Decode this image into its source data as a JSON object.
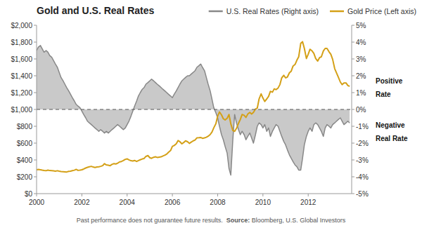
{
  "chart_data": {
    "type": "line",
    "title": "Gold and U.S. Real Rates",
    "footnote": "Past performance does not guarantee future results.  ",
    "source_label": "Source:",
    "source": " Bloomberg, U.S. Global Investors",
    "annotations": [
      "Positive",
      "Rate",
      "Negative",
      "Real Rate"
    ],
    "reference_line": 1000,
    "legend": "top",
    "grid": false,
    "xlim": [
      2000,
      2013.92
    ],
    "xticks": [
      2000,
      2002,
      2004,
      2006,
      2008,
      2010,
      2012
    ],
    "ylim": [
      0,
      2000
    ],
    "yticks": [
      {
        "value": 0,
        "label": "$0"
      },
      {
        "value": 200,
        "label": "$200"
      },
      {
        "value": 400,
        "label": "$400"
      },
      {
        "value": 600,
        "label": "$600"
      },
      {
        "value": 800,
        "label": "$800"
      },
      {
        "value": 1000,
        "label": "$1,000"
      },
      {
        "value": 1200,
        "label": "$1,200"
      },
      {
        "value": 1400,
        "label": "$1,400"
      },
      {
        "value": 1600,
        "label": "$1,600"
      },
      {
        "value": 1800,
        "label": "$1,800"
      },
      {
        "value": 2000,
        "label": "$2,000"
      }
    ],
    "y2lim": [
      -5,
      5
    ],
    "y2ticks": [
      {
        "value": -5,
        "label": "-5%"
      },
      {
        "value": -4,
        "label": "-4%"
      },
      {
        "value": -3,
        "label": "-3%"
      },
      {
        "value": -2,
        "label": "-2%"
      },
      {
        "value": -1,
        "label": "-1%"
      },
      {
        "value": 0,
        "label": "0%"
      },
      {
        "value": 1,
        "label": "1%"
      },
      {
        "value": 2,
        "label": "2%"
      },
      {
        "value": 3,
        "label": "3%"
      },
      {
        "value": 4,
        "label": "4%"
      },
      {
        "value": 5,
        "label": "5%"
      }
    ],
    "x": [
      2000.0,
      2000.08,
      2000.17,
      2000.25,
      2000.33,
      2000.42,
      2000.5,
      2000.58,
      2000.67,
      2000.75,
      2000.83,
      2000.92,
      2001.0,
      2001.08,
      2001.17,
      2001.25,
      2001.33,
      2001.42,
      2001.5,
      2001.58,
      2001.67,
      2001.75,
      2001.83,
      2001.92,
      2002.0,
      2002.08,
      2002.17,
      2002.25,
      2002.33,
      2002.42,
      2002.5,
      2002.58,
      2002.67,
      2002.75,
      2002.83,
      2002.92,
      2003.0,
      2003.08,
      2003.17,
      2003.25,
      2003.33,
      2003.42,
      2003.5,
      2003.58,
      2003.67,
      2003.75,
      2003.83,
      2003.92,
      2004.0,
      2004.08,
      2004.17,
      2004.25,
      2004.33,
      2004.42,
      2004.5,
      2004.58,
      2004.67,
      2004.75,
      2004.83,
      2004.92,
      2005.0,
      2005.08,
      2005.17,
      2005.25,
      2005.33,
      2005.42,
      2005.5,
      2005.58,
      2005.67,
      2005.75,
      2005.83,
      2005.92,
      2006.0,
      2006.08,
      2006.17,
      2006.25,
      2006.33,
      2006.42,
      2006.5,
      2006.58,
      2006.67,
      2006.75,
      2006.83,
      2006.92,
      2007.0,
      2007.08,
      2007.17,
      2007.25,
      2007.33,
      2007.42,
      2007.5,
      2007.58,
      2007.67,
      2007.75,
      2007.83,
      2007.92,
      2008.0,
      2008.08,
      2008.17,
      2008.25,
      2008.33,
      2008.42,
      2008.5,
      2008.58,
      2008.67,
      2008.75,
      2008.83,
      2008.92,
      2009.0,
      2009.08,
      2009.17,
      2009.25,
      2009.33,
      2009.42,
      2009.5,
      2009.58,
      2009.67,
      2009.75,
      2009.83,
      2009.92,
      2010.0,
      2010.08,
      2010.17,
      2010.25,
      2010.33,
      2010.42,
      2010.5,
      2010.58,
      2010.67,
      2010.75,
      2010.83,
      2010.92,
      2011.0,
      2011.08,
      2011.17,
      2011.25,
      2011.33,
      2011.42,
      2011.5,
      2011.58,
      2011.67,
      2011.75,
      2011.83,
      2011.92,
      2012.0,
      2012.08,
      2012.17,
      2012.25,
      2012.33,
      2012.42,
      2012.5,
      2012.58,
      2012.67,
      2012.75,
      2012.83,
      2012.92,
      2013.0,
      2013.08,
      2013.17,
      2013.25,
      2013.33,
      2013.42,
      2013.5,
      2013.58,
      2013.67,
      2013.75,
      2013.83
    ],
    "series": [
      {
        "name": "U.S. Real Rates (Right axis)",
        "color": "#888888",
        "axis": "y2",
        "type": "area",
        "values": [
          3.5,
          3.7,
          3.8,
          3.6,
          3.4,
          3.5,
          3.4,
          3.2,
          3.1,
          2.9,
          2.7,
          2.5,
          2.2,
          1.9,
          1.7,
          1.5,
          1.3,
          1.1,
          0.9,
          0.7,
          0.5,
          0.3,
          0.2,
          0.1,
          -0.1,
          -0.3,
          -0.5,
          -0.7,
          -0.8,
          -0.9,
          -1.0,
          -1.1,
          -1.2,
          -1.3,
          -1.2,
          -1.3,
          -1.4,
          -1.3,
          -1.4,
          -1.3,
          -1.2,
          -1.1,
          -1.0,
          -0.9,
          -1.0,
          -1.1,
          -1.2,
          -1.1,
          -0.9,
          -0.7,
          -0.4,
          -0.1,
          0.2,
          0.5,
          0.8,
          1.0,
          1.2,
          1.3,
          1.5,
          1.6,
          1.7,
          1.8,
          1.7,
          1.6,
          1.5,
          1.4,
          1.3,
          1.2,
          1.1,
          1.0,
          0.9,
          0.8,
          0.7,
          0.9,
          1.1,
          1.3,
          1.5,
          1.7,
          1.8,
          1.9,
          2.0,
          2.0,
          2.1,
          2.2,
          2.3,
          2.5,
          2.6,
          2.7,
          2.5,
          2.3,
          1.9,
          1.5,
          1.1,
          0.6,
          0.1,
          -0.2,
          -0.5,
          -1.0,
          -1.5,
          -1.8,
          -2.2,
          -2.6,
          -3.5,
          -3.9,
          -1.8,
          -0.3,
          -0.8,
          -1.2,
          -1.5,
          -1.3,
          -1.5,
          -1.8,
          -1.6,
          -1.4,
          -1.7,
          -2.0,
          -1.5,
          -1.0,
          -0.8,
          -0.9,
          -1.1,
          -0.9,
          -1.3,
          -1.1,
          -1.6,
          -1.3,
          -1.1,
          -0.9,
          -1.0,
          -1.3,
          -1.6,
          -1.9,
          -2.1,
          -2.4,
          -2.7,
          -2.9,
          -3.1,
          -3.3,
          -3.4,
          -3.6,
          -3.6,
          -2.9,
          -2.1,
          -1.6,
          -1.3,
          -1.1,
          -1.3,
          -0.9,
          -0.8,
          -0.9,
          -1.1,
          -1.3,
          -1.6,
          -1.1,
          -0.9,
          -1.0,
          -1.1,
          -0.9,
          -0.8,
          -0.7,
          -0.6,
          -0.5,
          -0.7,
          -0.9,
          -0.8,
          -0.7,
          -0.8
        ]
      },
      {
        "name": "Gold Price (Left axis)",
        "color": "#d4a017",
        "values": [
          283,
          287,
          284,
          279,
          275,
          272,
          279,
          274,
          272,
          270,
          267,
          272,
          267,
          263,
          261,
          259,
          257,
          264,
          267,
          273,
          278,
          288,
          276,
          279,
          283,
          292,
          304,
          312,
          319,
          324,
          316,
          311,
          317,
          319,
          324,
          332,
          356,
          341,
          337,
          332,
          347,
          357,
          352,
          362,
          377,
          382,
          392,
          407,
          413,
          401,
          391,
          387,
          394,
          382,
          392,
          402,
          412,
          417,
          442,
          452,
          427,
          419,
          432,
          437,
          430,
          434,
          437,
          447,
          457,
          470,
          492,
          512,
          562,
          572,
          592,
          630,
          617,
          592,
          607,
          627,
          617,
          597,
          612,
          627,
          637,
          662,
          664,
          667,
          657,
          662,
          670,
          682,
          702,
          732,
          782,
          830,
          920,
          970,
          935,
          890,
          875,
          895,
          940,
          830,
          750,
          740,
          775,
          835,
          880,
          940,
          930,
          905,
          945,
          965,
          945,
          965,
          1005,
          1015,
          1125,
          1185,
          1135,
          1095,
          1125,
          1155,
          1215,
          1205,
          1245,
          1235,
          1255,
          1295,
          1375,
          1405,
          1375,
          1385,
          1435,
          1455,
          1515,
          1535,
          1585,
          1625,
          1785,
          1805,
          1725,
          1605,
          1655,
          1715,
          1695,
          1665,
          1605,
          1575,
          1615,
          1625,
          1695,
          1725,
          1725,
          1685,
          1655,
          1595,
          1485,
          1435,
          1385,
          1325,
          1295,
          1315,
          1315,
          1285,
          1275
        ]
      }
    ]
  }
}
